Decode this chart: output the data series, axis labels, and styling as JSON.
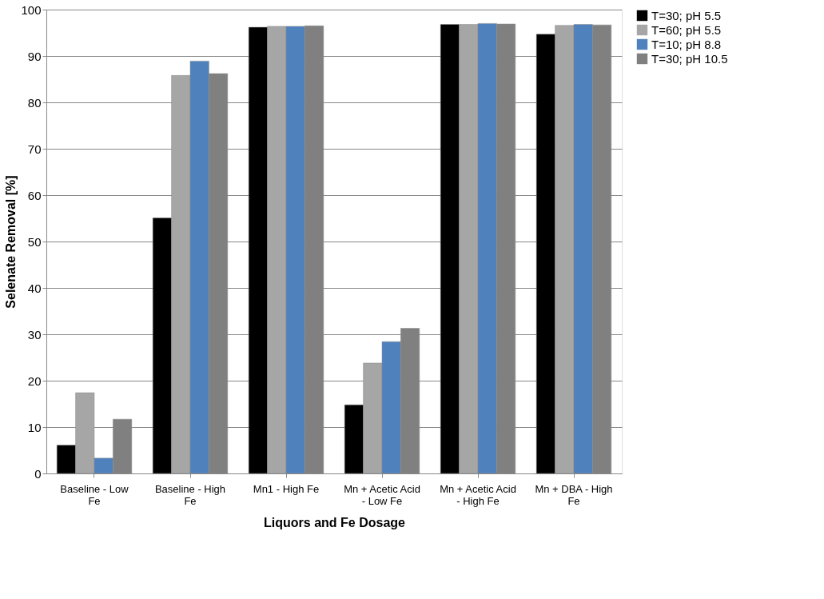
{
  "chart_data": {
    "type": "bar",
    "xlabel": "Liquors and Fe Dosage",
    "ylabel": "Selenate Removal [%]",
    "categories": [
      "Baseline - Low Fe",
      "Baseline - High Fe",
      "Mn1 - High Fe",
      "Mn + Acetic Acid - Low Fe",
      "Mn + Acetic Acid - High Fe",
      "Mn + DBA - High Fe"
    ],
    "series": [
      {
        "name": "T=30; pH 5.5",
        "color": "#000000",
        "values": [
          6.1,
          55.1,
          96.2,
          14.8,
          96.8,
          94.7
        ]
      },
      {
        "name": "T=60; pH 5.5",
        "color": "#a6a6a6",
        "values": [
          17.4,
          85.8,
          96.4,
          23.8,
          96.8,
          96.6
        ]
      },
      {
        "name": "T=10; pH 8.8",
        "color": "#4f81bd",
        "values": [
          3.3,
          88.9,
          96.4,
          28.4,
          97.0,
          96.8
        ]
      },
      {
        "name": "T=30; pH 10.5",
        "color": "#808080",
        "values": [
          11.7,
          86.2,
          96.5,
          31.3,
          96.9,
          96.7
        ]
      }
    ],
    "ylim": [
      0,
      100
    ],
    "yticks": [
      0,
      10,
      20,
      30,
      40,
      50,
      60,
      70,
      80,
      90,
      100
    ],
    "grid": "y",
    "legend": "right"
  }
}
